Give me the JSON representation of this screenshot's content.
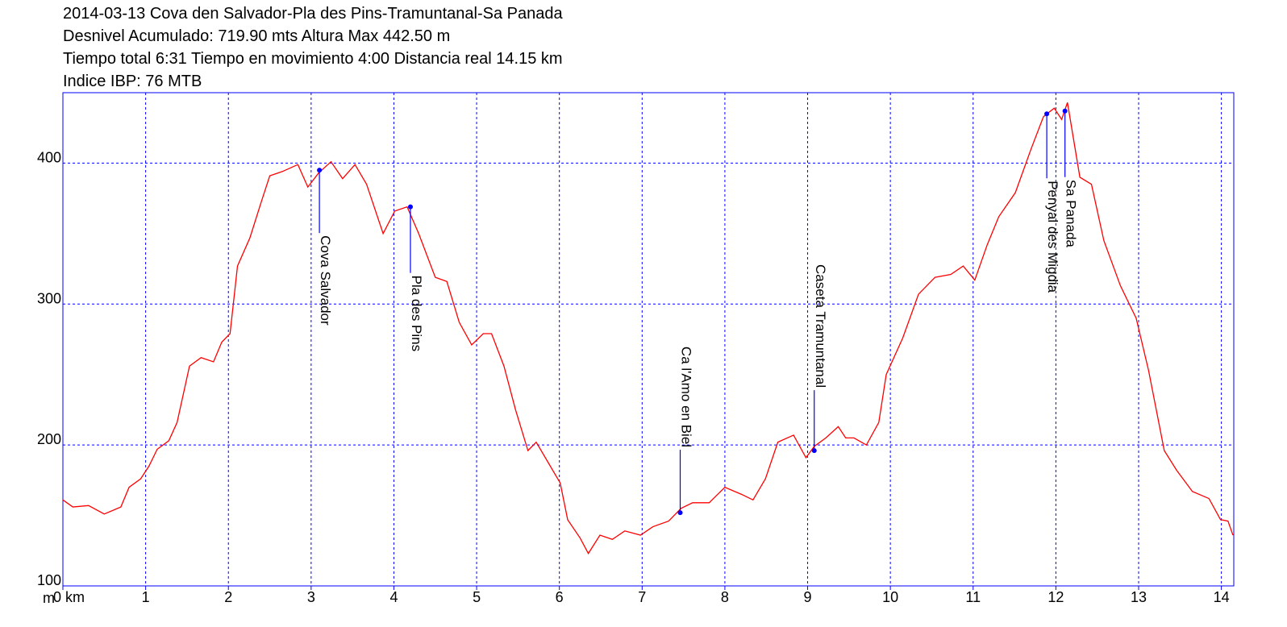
{
  "chart_data": {
    "type": "line",
    "title_lines": [
      "2014-03-13 Cova den Salvador-Pla des Pins-Tramuntanal-Sa Panada",
      "Desnivel Acumulado: 719.90 mts  Altura Max 442.50 m",
      "Tiempo total 6:31 Tiempo en movimiento 4:00 Distancia real 14.15 km",
      "Indice IBP: 76 MTB"
    ],
    "y_unit": "m",
    "xlim": [
      0,
      14.15
    ],
    "ylim": [
      100,
      450
    ],
    "xticks": [
      {
        "value": 0,
        "label": "0 km"
      },
      1,
      2,
      3,
      4,
      5,
      6,
      7,
      8,
      9,
      10,
      11,
      12,
      13,
      14
    ],
    "yticks": [
      100,
      200,
      300,
      400
    ],
    "grid": true,
    "series": [
      {
        "name": "Altura",
        "color": "#ff0000",
        "x": [
          0,
          0.12,
          0.31,
          0.5,
          0.7,
          0.8,
          0.94,
          1.04,
          1.14,
          1.28,
          1.38,
          1.53,
          1.67,
          1.82,
          1.92,
          2.02,
          2.11,
          2.26,
          2.4,
          2.5,
          2.65,
          2.84,
          2.96,
          3.09,
          3.24,
          3.38,
          3.53,
          3.67,
          3.87,
          4.01,
          4.16,
          4.3,
          4.5,
          4.64,
          4.79,
          4.94,
          5.08,
          5.18,
          5.33,
          5.47,
          5.62,
          5.72,
          5.87,
          6.01,
          6.1,
          6.25,
          6.35,
          6.49,
          6.64,
          6.79,
          6.98,
          7.13,
          7.32,
          7.47,
          7.61,
          7.81,
          8.0,
          8.2,
          8.34,
          8.49,
          8.64,
          8.83,
          8.98,
          9.08,
          9.22,
          9.37,
          9.46,
          9.56,
          9.71,
          9.86,
          9.95,
          10.15,
          10.34,
          10.54,
          10.73,
          10.88,
          11.02,
          11.17,
          11.31,
          11.51,
          11.7,
          11.85,
          11.98,
          12.07,
          12.14,
          12.29,
          12.43,
          12.58,
          12.78,
          12.97,
          13.12,
          13.31,
          13.46,
          13.65,
          13.85,
          13.99,
          14.08,
          14.14
        ],
        "values": [
          161,
          156,
          157,
          151,
          156,
          170,
          176,
          185,
          197,
          203,
          216,
          256,
          262,
          259,
          273,
          279,
          327,
          347,
          373,
          391,
          394,
          399,
          383,
          393,
          401,
          389,
          399,
          385,
          350,
          366,
          369,
          350,
          319,
          316,
          287,
          271,
          279,
          279,
          256,
          225,
          196,
          202,
          187,
          173,
          147,
          134,
          123,
          136,
          133,
          139,
          136,
          142,
          146,
          155,
          159,
          159,
          170,
          165,
          161,
          176,
          202,
          207,
          191,
          199,
          205,
          213,
          205,
          205,
          200,
          216,
          250,
          276,
          307,
          319,
          321,
          327,
          317,
          342,
          362,
          379,
          410,
          433,
          439,
          431,
          443,
          390,
          385,
          345,
          313,
          290,
          253,
          196,
          182,
          167,
          162,
          147,
          146,
          136
        ]
      }
    ],
    "waypoints": [
      {
        "label": "Cova Salvador",
        "x": 3.1,
        "y": 395
      },
      {
        "label": "Pla des Pins",
        "x": 4.2,
        "y": 369
      },
      {
        "label": "Ca l'Amo en Biel",
        "x": 7.46,
        "y": 152
      },
      {
        "label": "Caseta Tramuntanal",
        "x": 9.08,
        "y": 196
      },
      {
        "label": "Penyal des Migdia",
        "x": 11.89,
        "y": 435
      },
      {
        "label": "Sa Panada",
        "x": 12.11,
        "y": 437
      }
    ]
  }
}
